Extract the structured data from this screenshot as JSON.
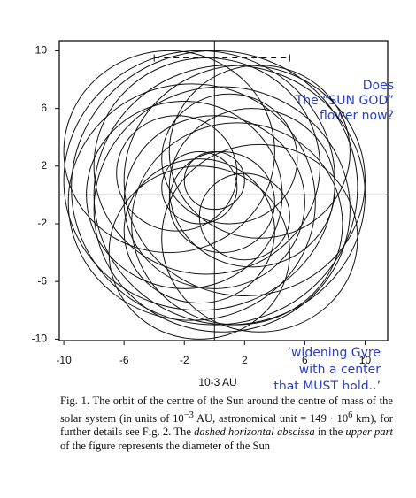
{
  "chart_data": {
    "type": "orbit",
    "xlabel": "10-3 AU",
    "xlim": [
      -10.3,
      11.5
    ],
    "ylim": [
      -10.1,
      10.7
    ],
    "xticks": [
      -10,
      -6,
      -2,
      2,
      6,
      10
    ],
    "yticks": [
      10,
      6,
      2,
      -2,
      -6,
      -10
    ],
    "origin_lines": true,
    "color": "#111111",
    "loops": [
      {
        "cx": 0,
        "cy": 0.5,
        "r": 9.5
      },
      {
        "cx": 1,
        "cy": 0,
        "r": 9
      },
      {
        "cx": -1,
        "cy": 1,
        "r": 9
      },
      {
        "cx": 0.5,
        "cy": -1,
        "r": 8.5
      },
      {
        "cx": -1.5,
        "cy": -0.5,
        "r": 8.2
      },
      {
        "cx": 2,
        "cy": 1,
        "r": 8
      },
      {
        "cx": -0.5,
        "cy": 2,
        "r": 7.5
      },
      {
        "cx": 1.5,
        "cy": -2,
        "r": 7
      },
      {
        "cx": -2,
        "cy": 0,
        "r": 6.5
      },
      {
        "cx": 0,
        "cy": -0.5,
        "r": 6
      },
      {
        "cx": 2.5,
        "cy": 0.5,
        "r": 5.5
      },
      {
        "cx": -1,
        "cy": -2.5,
        "r": 5
      },
      {
        "cx": 1,
        "cy": 2.5,
        "r": 4.5
      },
      {
        "cx": -2.5,
        "cy": 1.5,
        "r": 4
      },
      {
        "cx": 0.5,
        "cy": -0.5,
        "r": 3.5
      },
      {
        "cx": 2,
        "cy": -1.5,
        "r": 3
      },
      {
        "cx": -1,
        "cy": 0.5,
        "r": 2.5
      },
      {
        "cx": 0,
        "cy": 1,
        "r": 2
      },
      {
        "cx": -1,
        "cy": -4,
        "r": 6
      },
      {
        "cx": 3,
        "cy": 3,
        "r": 6
      },
      {
        "cx": -3,
        "cy": 3,
        "r": 7
      },
      {
        "cx": 3,
        "cy": -3,
        "r": 6.5
      }
    ],
    "sun_diameter": {
      "x": [
        -4,
        5
      ],
      "y": 9.5
    }
  },
  "annotations": {
    "top": [
      "Does",
      "The “SUN GOD”",
      "flower now?"
    ],
    "bottom": [
      "‘widening Gyre",
      "with a center",
      "that MUST hold..’"
    ]
  },
  "caption": [
    "Fig. 1.",
    " The orbit of the centre of the Sun around the centre of mass of the solar system (in units of 10",
    "−3",
    " AU, astronomical unit = 149 · 10",
    "6",
    " km), for further details see Fig. 2. The ",
    "dashed horizontal abscissa",
    " in the ",
    "upper part",
    " of the figure represents the diameter of the Sun"
  ]
}
